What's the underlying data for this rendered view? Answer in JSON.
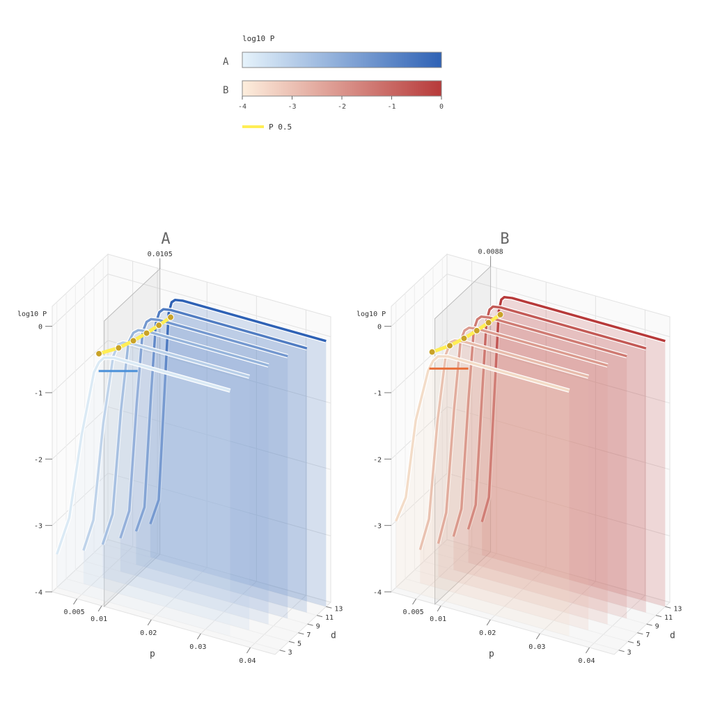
{
  "legend": {
    "title": "log10 P",
    "rows": [
      {
        "label": "A",
        "stops": [
          "#e6f3fb",
          "#2f62b5"
        ]
      },
      {
        "label": "B",
        "stops": [
          "#fdeedd",
          "#b73a3a"
        ]
      }
    ],
    "ticks": [
      "-4",
      "-3",
      "-2",
      "-1",
      "0"
    ],
    "line_label": "P 0.5",
    "line_color": "#ffee55"
  },
  "chart_data": [
    {
      "type": "line",
      "title": "A",
      "annotation": "0.0105",
      "xlabel": "p",
      "ylabel": "d",
      "zlabel": "log10 P",
      "x_ticks": [
        "0.005",
        "0.01",
        "0.02",
        "0.03",
        "0.04"
      ],
      "x_tick_values": [
        0.005,
        0.01,
        0.02,
        0.03,
        0.04
      ],
      "xlim": [
        0.0,
        0.045
      ],
      "y_ticks": [
        "3",
        "5",
        "7",
        "9",
        "11",
        "13"
      ],
      "y_tick_values": [
        3,
        5,
        7,
        9,
        11,
        13
      ],
      "ylim": [
        2,
        14
      ],
      "z_ticks": [
        "0",
        "-1",
        "-2",
        "-3",
        "-4"
      ],
      "z_tick_values": [
        0,
        -1,
        -2,
        -3,
        -4
      ],
      "zlim": [
        -4,
        0.3
      ],
      "colormap": [
        "#dbeaf5",
        "#2f62b5"
      ],
      "series": [
        {
          "d": 3,
          "p": [
            0.0,
            0.0025,
            0.005,
            0.0075,
            0.0085,
            0.0095,
            0.0115,
            0.035
          ],
          "log10P": [
            -3.5,
            -2.9,
            -1.6,
            -0.6,
            -0.43,
            -0.34,
            -0.3,
            -0.3
          ]
        },
        {
          "d": 5,
          "p": [
            0.0035,
            0.0055,
            0.0075,
            0.0095,
            0.0105,
            0.0115,
            0.0135,
            0.037
          ],
          "log10P": [
            -3.5,
            -3.0,
            -1.5,
            -0.45,
            -0.25,
            -0.2,
            -0.18,
            -0.18
          ]
        },
        {
          "d": 7,
          "p": [
            0.0055,
            0.0075,
            0.0092,
            0.0107,
            0.0117,
            0.0127,
            0.0145,
            0.039
          ],
          "log10P": [
            -3.5,
            -3.0,
            -1.4,
            -0.35,
            -0.18,
            -0.12,
            -0.1,
            -0.1
          ]
        },
        {
          "d": 9,
          "p": [
            0.0072,
            0.009,
            0.0105,
            0.0117,
            0.0125,
            0.0134,
            0.015,
            0.041
          ],
          "log10P": [
            -3.5,
            -3.05,
            -1.4,
            -0.3,
            -0.13,
            -0.07,
            -0.05,
            -0.05
          ]
        },
        {
          "d": 11,
          "p": [
            0.0085,
            0.0102,
            0.0115,
            0.0125,
            0.0132,
            0.014,
            0.0155,
            0.043
          ],
          "log10P": [
            -3.5,
            -3.1,
            -1.4,
            -0.28,
            -0.1,
            -0.04,
            -0.02,
            -0.02
          ]
        },
        {
          "d": 13,
          "p": [
            0.0095,
            0.0112,
            0.0124,
            0.0132,
            0.0138,
            0.0145,
            0.016,
            0.045
          ],
          "log10P": [
            -3.5,
            -3.1,
            -1.4,
            -0.25,
            -0.07,
            -0.02,
            0.0,
            0.0
          ]
        }
      ],
      "threshold": {
        "name": "P 0.5",
        "log10P": -0.3,
        "p": [
          0.0085,
          0.0106,
          0.0117,
          0.0125,
          0.0131,
          0.0136
        ],
        "d": [
          3,
          5,
          7,
          9,
          11,
          13
        ]
      },
      "marker_color": "#4a90d9"
    },
    {
      "type": "line",
      "title": "B",
      "annotation": "0.0088",
      "xlabel": "p",
      "ylabel": "d",
      "zlabel": "log10 P",
      "x_ticks": [
        "0.005",
        "0.01",
        "0.02",
        "0.03",
        "0.04"
      ],
      "x_tick_values": [
        0.005,
        0.01,
        0.02,
        0.03,
        0.04
      ],
      "xlim": [
        0.0,
        0.045
      ],
      "y_ticks": [
        "3",
        "5",
        "7",
        "9",
        "11",
        "13"
      ],
      "y_tick_values": [
        3,
        5,
        7,
        9,
        11,
        13
      ],
      "ylim": [
        2,
        14
      ],
      "z_ticks": [
        "0",
        "-1",
        "-2",
        "-3",
        "-4"
      ],
      "z_tick_values": [
        0,
        -1,
        -2,
        -3,
        -4
      ],
      "zlim": [
        -4,
        0.3
      ],
      "colormap": [
        "#f3dcc8",
        "#b73a3a"
      ],
      "series": [
        {
          "d": 3,
          "p": [
            0.0,
            0.002,
            0.004,
            0.0065,
            0.0075,
            0.0085,
            0.0105,
            0.035
          ],
          "log10P": [
            -3.0,
            -2.6,
            -1.4,
            -0.6,
            -0.43,
            -0.34,
            -0.3,
            -0.3
          ]
        },
        {
          "d": 5,
          "p": [
            0.003,
            0.0048,
            0.0065,
            0.0082,
            0.0091,
            0.01,
            0.0118,
            0.037
          ],
          "log10P": [
            -3.5,
            -3.0,
            -1.5,
            -0.45,
            -0.25,
            -0.2,
            -0.18,
            -0.18
          ]
        },
        {
          "d": 7,
          "p": [
            0.0048,
            0.0064,
            0.008,
            0.0093,
            0.0101,
            0.011,
            0.0127,
            0.039
          ],
          "log10P": [
            -3.5,
            -3.0,
            -1.4,
            -0.35,
            -0.18,
            -0.12,
            -0.1,
            -0.1
          ]
        },
        {
          "d": 9,
          "p": [
            0.006,
            0.0076,
            0.009,
            0.0101,
            0.0108,
            0.0116,
            0.0132,
            0.041
          ],
          "log10P": [
            -3.5,
            -3.05,
            -1.4,
            -0.3,
            -0.13,
            -0.07,
            -0.05,
            -0.05
          ]
        },
        {
          "d": 11,
          "p": [
            0.0071,
            0.0086,
            0.0099,
            0.0108,
            0.0114,
            0.0121,
            0.0137,
            0.043
          ],
          "log10P": [
            -3.5,
            -3.1,
            -1.4,
            -0.28,
            -0.1,
            -0.04,
            -0.02,
            -0.02
          ]
        },
        {
          "d": 13,
          "p": [
            0.008,
            0.0094,
            0.0106,
            0.0114,
            0.0119,
            0.0125,
            0.0141,
            0.045
          ],
          "log10P": [
            -3.5,
            -3.1,
            -1.4,
            -0.25,
            -0.07,
            -0.02,
            0.0,
            0.0
          ]
        }
      ],
      "threshold": {
        "name": "P 0.5",
        "log10P": -0.3,
        "p": [
          0.0073,
          0.009,
          0.01,
          0.0107,
          0.0112,
          0.0117
        ],
        "d": [
          3,
          5,
          7,
          9,
          11,
          13
        ]
      },
      "marker_color": "#e8713c"
    }
  ]
}
